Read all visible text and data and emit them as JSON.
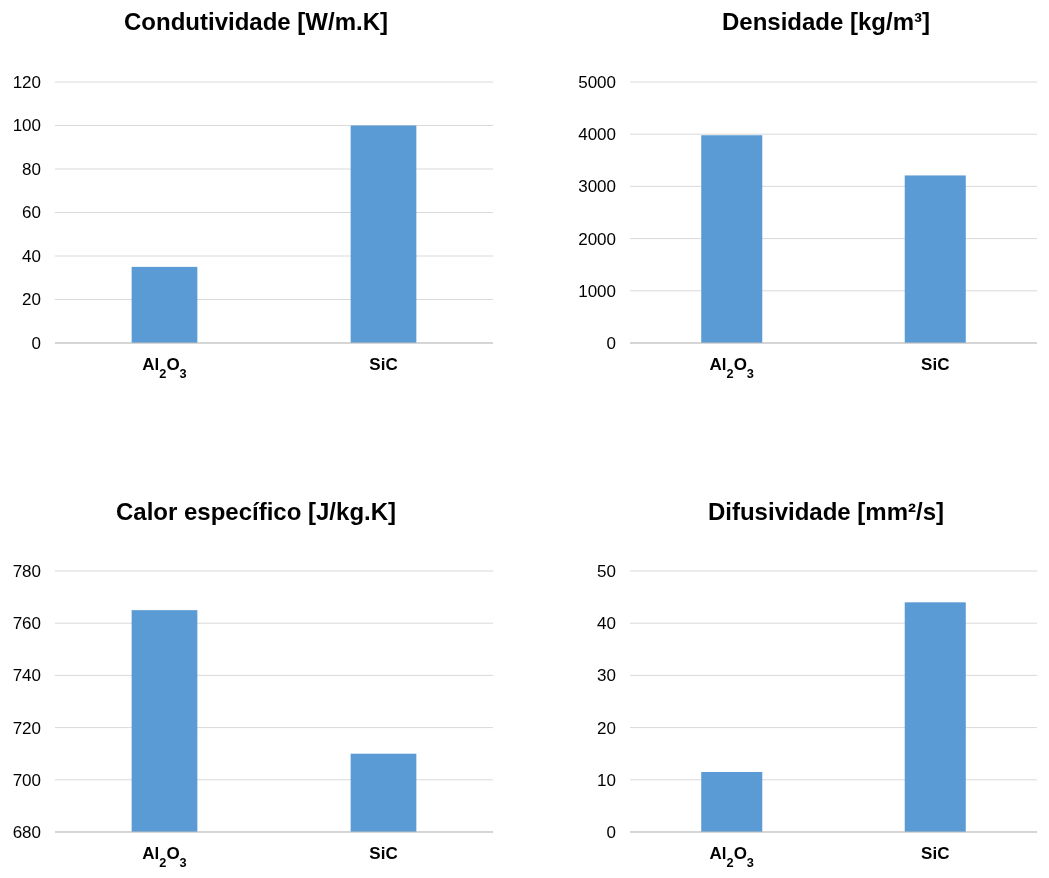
{
  "chart_data": [
    {
      "type": "bar",
      "title": "Condutividade [W/m.K]",
      "categories": [
        "Al$_{2}$O$_{3}$",
        "SiC"
      ],
      "values": [
        35,
        100
      ],
      "color": "#5b9bd5",
      "ylim": [
        0,
        120
      ],
      "yticks": [
        0,
        20,
        40,
        60,
        80,
        100,
        120
      ],
      "grid": "y"
    },
    {
      "type": "bar",
      "title": "Densidade [kg/m³]",
      "categories": [
        "Al$_{2}$O$_{3}$",
        "SiC"
      ],
      "values": [
        3980,
        3210
      ],
      "color": "#5b9bd5",
      "ylim": [
        0,
        5000
      ],
      "yticks": [
        0,
        1000,
        2000,
        3000,
        4000,
        5000
      ],
      "grid": "y"
    },
    {
      "type": "bar",
      "title": "Calor específico [J/kg.K]",
      "categories": [
        "Al$_{2}$O$_{3}$",
        "SiC"
      ],
      "values": [
        765,
        710
      ],
      "color": "#5b9bd5",
      "ylim": [
        680,
        780
      ],
      "yticks": [
        680,
        700,
        720,
        740,
        760,
        780
      ],
      "grid": "y"
    },
    {
      "type": "bar",
      "title": "Difusividade [mm²/s]",
      "categories": [
        "Al$_{2}$O$_{3}$",
        "SiC"
      ],
      "values": [
        11.5,
        44
      ],
      "color": "#5b9bd5",
      "ylim": [
        0,
        50
      ],
      "yticks": [
        0,
        10,
        20,
        30,
        40,
        50
      ],
      "grid": "y"
    }
  ]
}
